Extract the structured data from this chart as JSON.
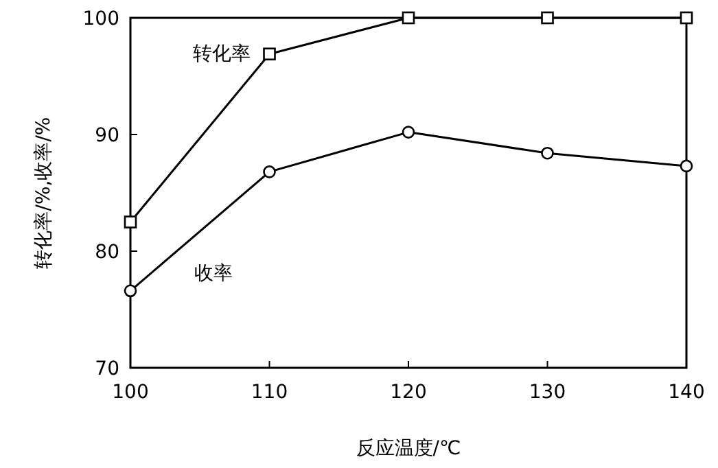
{
  "chart_data": {
    "type": "line",
    "xlabel": "反应温度/℃",
    "ylabel": "转化率/%,收率/%",
    "x": [
      100,
      110,
      120,
      130,
      140
    ],
    "xlim": [
      100,
      140
    ],
    "xticks": [
      100,
      110,
      120,
      130,
      140
    ],
    "ylim": [
      70,
      100
    ],
    "yticks": [
      70,
      80,
      90,
      100
    ],
    "grid": false,
    "line_style": "solid",
    "series": [
      {
        "name": "转化率",
        "color": "#000000",
        "marker": "square",
        "values": [
          82.5,
          96.9,
          100,
          100,
          100
        ]
      },
      {
        "name": "收率",
        "color": "#000000",
        "marker": "circle",
        "values": [
          76.6,
          86.8,
          90.2,
          88.4,
          87.3
        ]
      }
    ]
  }
}
